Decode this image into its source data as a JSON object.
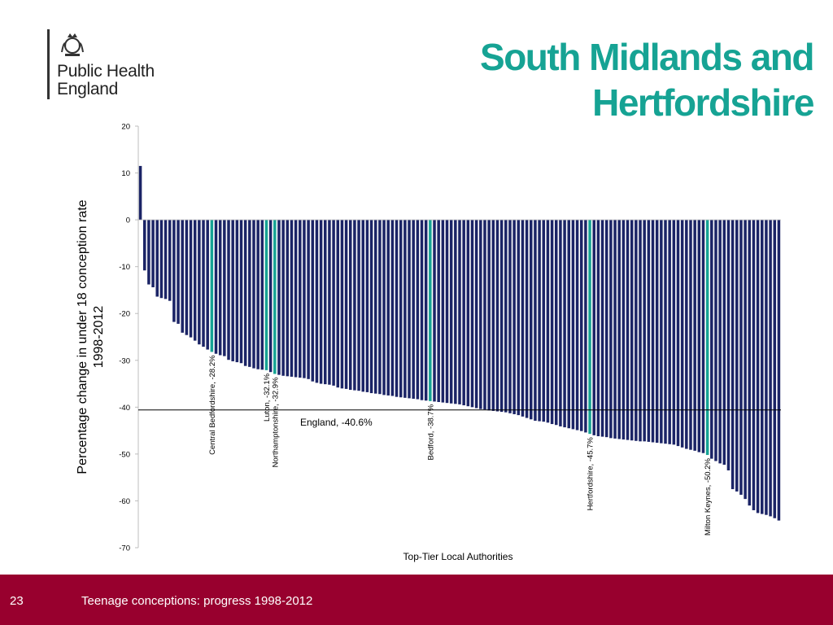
{
  "logo": {
    "line1": "Public Health",
    "line2": "England",
    "crest": "royal-crest-icon"
  },
  "title": {
    "line1": "South Midlands and",
    "line2": "Hertfordshire"
  },
  "footer": {
    "page_number": "23",
    "text": "Teenage conceptions: progress 1998-2012"
  },
  "colors": {
    "bar": "#1b2466",
    "highlight": "#16a394",
    "title": "#16a394",
    "footer": "#98002e"
  },
  "chart_data": {
    "type": "bar",
    "xlabel": "Top-Tier Local Authorities",
    "ylabel": [
      "Percentage change in under 18 conception rate",
      "1998-2012"
    ],
    "ylim": [
      -70,
      20
    ],
    "yticks": [
      20,
      10,
      0,
      -10,
      -20,
      -30,
      -40,
      -50,
      -60,
      -70
    ],
    "grid": false,
    "reference_line": {
      "label": "England, -40.6%",
      "value": -40.6
    },
    "highlights": [
      {
        "label": "Central Bedfordshire, -28.2%",
        "index": 17
      },
      {
        "label": "Luton, -32.1%",
        "index": 30
      },
      {
        "label": "Northamptonshire, -32.9%",
        "index": 32
      },
      {
        "label": "Bedford, -38.7%",
        "index": 69
      },
      {
        "label": "Hertfordshire, -45.7%",
        "index": 107
      },
      {
        "label": "Milton Keynes, -50.2%",
        "index": 135
      }
    ],
    "values": [
      11.5,
      -10.8,
      -13.8,
      -14.4,
      -16.4,
      -16.7,
      -16.9,
      -17.3,
      -21.8,
      -22.2,
      -24.1,
      -24.6,
      -25.1,
      -25.8,
      -26.6,
      -27.1,
      -27.7,
      -28.2,
      -28.6,
      -28.9,
      -29.1,
      -29.9,
      -30.2,
      -30.4,
      -30.6,
      -31.2,
      -31.4,
      -31.7,
      -31.9,
      -32.0,
      -32.1,
      -32.5,
      -32.9,
      -33.1,
      -33.3,
      -33.4,
      -33.5,
      -33.6,
      -33.7,
      -33.8,
      -34.0,
      -34.5,
      -34.8,
      -35.0,
      -35.1,
      -35.2,
      -35.4,
      -35.8,
      -36.0,
      -36.1,
      -36.3,
      -36.4,
      -36.5,
      -36.7,
      -36.8,
      -37.0,
      -37.1,
      -37.2,
      -37.4,
      -37.5,
      -37.6,
      -37.8,
      -37.9,
      -38.0,
      -38.1,
      -38.2,
      -38.3,
      -38.5,
      -38.6,
      -38.7,
      -38.8,
      -38.9,
      -39.0,
      -39.1,
      -39.2,
      -39.3,
      -39.4,
      -39.6,
      -39.8,
      -40.0,
      -40.2,
      -40.4,
      -40.5,
      -40.7,
      -40.8,
      -40.9,
      -41.0,
      -41.1,
      -41.3,
      -41.5,
      -41.7,
      -42.0,
      -42.3,
      -42.6,
      -42.9,
      -43.0,
      -43.1,
      -43.3,
      -43.6,
      -43.8,
      -44.1,
      -44.3,
      -44.5,
      -44.7,
      -44.9,
      -45.1,
      -45.4,
      -45.7,
      -46.0,
      -46.2,
      -46.3,
      -46.4,
      -46.6,
      -46.7,
      -46.8,
      -46.9,
      -47.0,
      -47.1,
      -47.2,
      -47.3,
      -47.3,
      -47.4,
      -47.5,
      -47.6,
      -47.7,
      -47.8,
      -47.9,
      -48.0,
      -48.3,
      -48.6,
      -48.9,
      -49.1,
      -49.3,
      -49.6,
      -49.8,
      -50.2,
      -51.0,
      -51.5,
      -52.0,
      -52.3,
      -53.5,
      -57.5,
      -58.0,
      -58.7,
      -59.6,
      -61.0,
      -62.0,
      -62.6,
      -62.8,
      -63.0,
      -63.3,
      -63.7,
      -64.2
    ]
  }
}
